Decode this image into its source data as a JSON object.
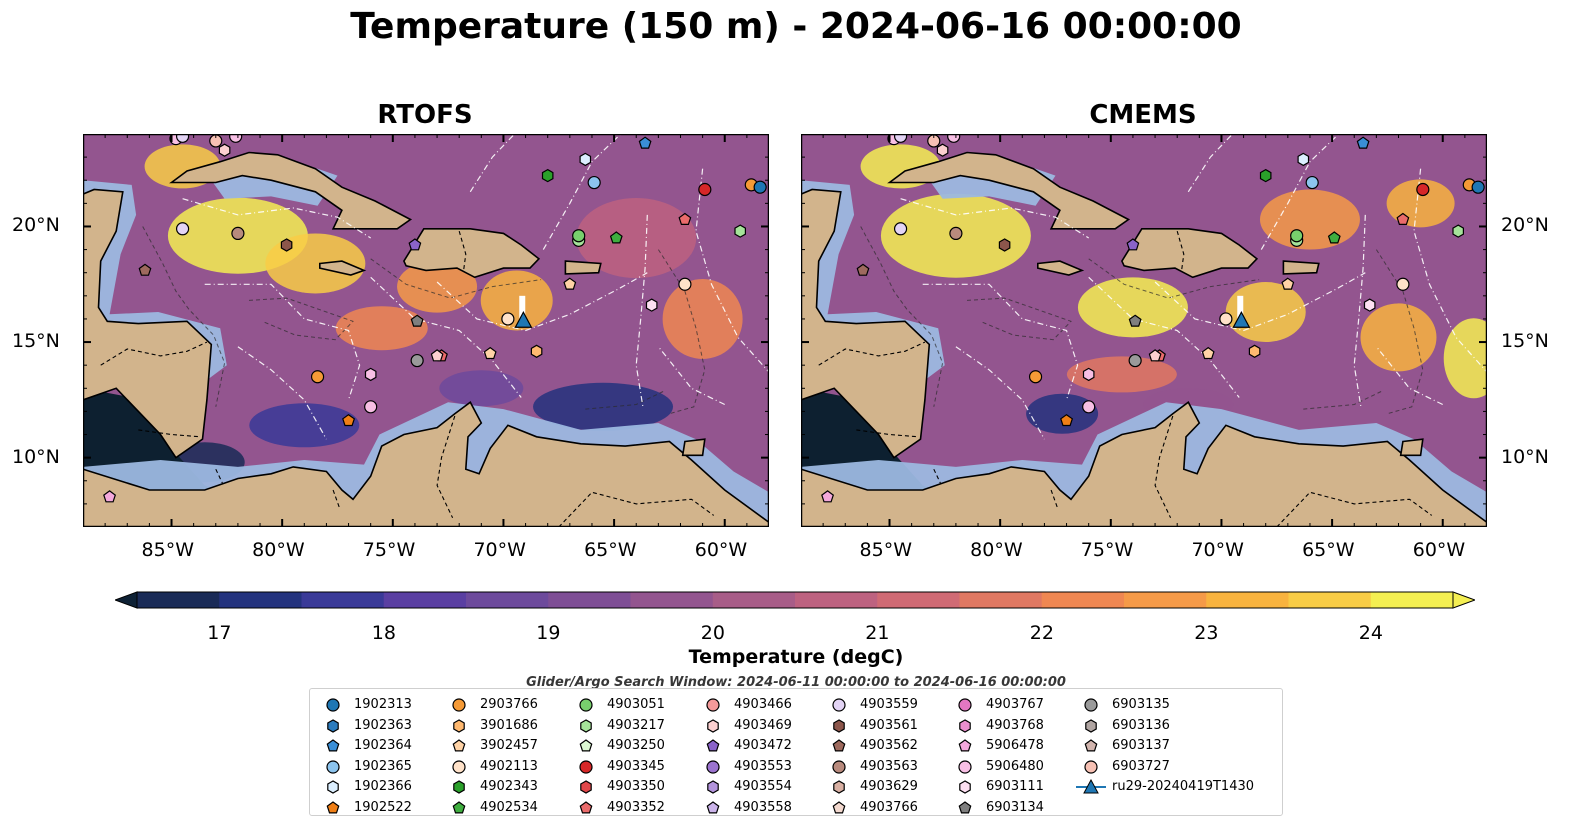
{
  "title": "Temperature (150 m) - 2024-06-16 00:00:00",
  "chart_data": {
    "type": "heatmap",
    "panels": [
      {
        "title": "RTOFS"
      },
      {
        "title": "CMEMS"
      }
    ],
    "x_ticks": [
      "85°W",
      "80°W",
      "75°W",
      "70°W",
      "65°W",
      "60°W"
    ],
    "y_ticks": [
      "20°N",
      "15°N",
      "10°N"
    ],
    "x_tick_values": [
      -85,
      -80,
      -75,
      -70,
      -65,
      -60
    ],
    "y_tick_values": [
      20,
      15,
      10
    ],
    "lon_range": [
      -89,
      -58
    ],
    "lat_range": [
      7,
      24
    ],
    "colorbar": {
      "label": "Temperature (degC)",
      "ticks": [
        "17",
        "18",
        "19",
        "20",
        "21",
        "22",
        "23",
        "24"
      ],
      "min": 16.5,
      "max": 24.5,
      "colors": [
        "#0e2135",
        "#1a2b57",
        "#24337e",
        "#3a3a98",
        "#5a3fa2",
        "#6d4a9c",
        "#7e4e95",
        "#93558f",
        "#a85d88",
        "#bd6280",
        "#d06a74",
        "#e07862",
        "#ef8752",
        "#f59a48",
        "#f8b33f",
        "#f8cc46",
        "#f4ef52"
      ]
    },
    "search_window": "Glider/Argo Search Window: 2024-06-11 00:00:00 to 2024-06-16 00:00:00",
    "legend": [
      {
        "label": "1902313",
        "marker": "circle",
        "color": "#1f77b4"
      },
      {
        "label": "1902363",
        "marker": "hexagon",
        "color": "#2b7bbd"
      },
      {
        "label": "1902364",
        "marker": "pentagon",
        "color": "#3a8ed6"
      },
      {
        "label": "1902365",
        "marker": "circle",
        "color": "#8cc4ee"
      },
      {
        "label": "1902366",
        "marker": "hexagon",
        "color": "#dcefff"
      },
      {
        "label": "1902522",
        "marker": "pentagon",
        "color": "#f07f16"
      },
      {
        "label": "2903766",
        "marker": "circle",
        "color": "#f59a36"
      },
      {
        "label": "3901686",
        "marker": "hexagon",
        "color": "#ffb970"
      },
      {
        "label": "3902457",
        "marker": "pentagon",
        "color": "#ffd3a6"
      },
      {
        "label": "4902113",
        "marker": "circle",
        "color": "#ffe2c9"
      },
      {
        "label": "4902343",
        "marker": "hexagon",
        "color": "#2aa02a"
      },
      {
        "label": "4902534",
        "marker": "pentagon",
        "color": "#3fae3f"
      },
      {
        "label": "4903051",
        "marker": "circle",
        "color": "#78cf6d"
      },
      {
        "label": "4903217",
        "marker": "hexagon",
        "color": "#a6e39a"
      },
      {
        "label": "4903250",
        "marker": "pentagon",
        "color": "#dcf8d2"
      },
      {
        "label": "4903345",
        "marker": "circle",
        "color": "#d62728"
      },
      {
        "label": "4903350",
        "marker": "hexagon",
        "color": "#e0474a"
      },
      {
        "label": "4903352",
        "marker": "pentagon",
        "color": "#ea6b6b"
      },
      {
        "label": "4903466",
        "marker": "circle",
        "color": "#f59a9a"
      },
      {
        "label": "4903469",
        "marker": "hexagon",
        "color": "#fcd0d0"
      },
      {
        "label": "4903472",
        "marker": "pentagon",
        "color": "#8a63c9"
      },
      {
        "label": "4903553",
        "marker": "circle",
        "color": "#9b73cf"
      },
      {
        "label": "4903554",
        "marker": "hexagon",
        "color": "#b394dc"
      },
      {
        "label": "4903558",
        "marker": "pentagon",
        "color": "#cbb4ea"
      },
      {
        "label": "4903559",
        "marker": "circle",
        "color": "#e3d4f5"
      },
      {
        "label": "4903561",
        "marker": "hexagon",
        "color": "#8c564b"
      },
      {
        "label": "4903562",
        "marker": "pentagon",
        "color": "#9e6a5e"
      },
      {
        "label": "4903563",
        "marker": "circle",
        "color": "#b88a7d"
      },
      {
        "label": "4903629",
        "marker": "hexagon",
        "color": "#d9b0a3"
      },
      {
        "label": "4903766",
        "marker": "pentagon",
        "color": "#f3d9cf"
      },
      {
        "label": "4903767",
        "marker": "circle",
        "color": "#e377c2"
      },
      {
        "label": "4903768",
        "marker": "hexagon",
        "color": "#eb8fcf"
      },
      {
        "label": "5906478",
        "marker": "pentagon",
        "color": "#f4a8dc"
      },
      {
        "label": "5906480",
        "marker": "circle",
        "color": "#f7bfe4"
      },
      {
        "label": "6903111",
        "marker": "hexagon",
        "color": "#fde0f2"
      },
      {
        "label": "6903134",
        "marker": "pentagon",
        "color": "#7f7f7f"
      },
      {
        "label": "6903135",
        "marker": "circle",
        "color": "#9a9a9a"
      },
      {
        "label": "6903136",
        "marker": "hexagon",
        "color": "#b0a5a2"
      },
      {
        "label": "6903137",
        "marker": "pentagon",
        "color": "#d2b5ae"
      },
      {
        "label": "6903727",
        "marker": "circle",
        "color": "#f7c1b4"
      },
      {
        "label": "ru29-20240419T1430",
        "marker": "triangle-line",
        "color": "#1f77b4"
      }
    ],
    "floats": [
      {
        "lon": -84.8,
        "lat": 23.8,
        "color": "#f7bfe4",
        "marker": "circle"
      },
      {
        "lon": -84.5,
        "lat": 23.9,
        "color": "#e3d4f5",
        "marker": "circle"
      },
      {
        "lon": -83.0,
        "lat": 23.7,
        "color": "#f7c1b4",
        "marker": "circle"
      },
      {
        "lon": -82.6,
        "lat": 23.3,
        "color": "#fcd0d0",
        "marker": "hexagon"
      },
      {
        "lon": -82.1,
        "lat": 23.9,
        "color": "#f7bfe4",
        "marker": "circle"
      },
      {
        "lon": -84.5,
        "lat": 19.9,
        "color": "#e3d4f5",
        "marker": "circle"
      },
      {
        "lon": -82.0,
        "lat": 19.7,
        "color": "#b88a7d",
        "marker": "circle"
      },
      {
        "lon": -79.8,
        "lat": 19.2,
        "color": "#8c564b",
        "marker": "hexagon"
      },
      {
        "lon": -86.2,
        "lat": 18.1,
        "color": "#9e6a5e",
        "marker": "pentagon"
      },
      {
        "lon": -74.0,
        "lat": 19.2,
        "color": "#8a63c9",
        "marker": "pentagon"
      },
      {
        "lon": -68.0,
        "lat": 22.2,
        "color": "#2aa02a",
        "marker": "hexagon"
      },
      {
        "lon": -66.3,
        "lat": 22.9,
        "color": "#dcefff",
        "marker": "hexagon"
      },
      {
        "lon": -65.9,
        "lat": 21.9,
        "color": "#8cc4ee",
        "marker": "circle"
      },
      {
        "lon": -63.6,
        "lat": 23.6,
        "color": "#3a8ed6",
        "marker": "pentagon"
      },
      {
        "lon": -60.9,
        "lat": 21.6,
        "color": "#d62728",
        "marker": "circle"
      },
      {
        "lon": -58.8,
        "lat": 21.8,
        "color": "#f59a36",
        "marker": "circle"
      },
      {
        "lon": -58.4,
        "lat": 21.7,
        "color": "#1f77b4",
        "marker": "circle"
      },
      {
        "lon": -61.8,
        "lat": 20.3,
        "color": "#ea6b6b",
        "marker": "pentagon"
      },
      {
        "lon": -59.3,
        "lat": 19.8,
        "color": "#a6e39a",
        "marker": "hexagon"
      },
      {
        "lon": -66.6,
        "lat": 19.4,
        "color": "#a6e39a",
        "marker": "circle"
      },
      {
        "lon": -66.6,
        "lat": 19.6,
        "color": "#78cf6d",
        "marker": "circle"
      },
      {
        "lon": -64.9,
        "lat": 19.5,
        "color": "#3fae3f",
        "marker": "pentagon"
      },
      {
        "lon": -67.0,
        "lat": 17.5,
        "color": "#ffd3a6",
        "marker": "pentagon"
      },
      {
        "lon": -61.8,
        "lat": 17.5,
        "color": "#ffe2c9",
        "marker": "circle"
      },
      {
        "lon": -63.3,
        "lat": 16.6,
        "color": "#fde0f2",
        "marker": "hexagon"
      },
      {
        "lon": -73.9,
        "lat": 15.9,
        "color": "#7f7f7f",
        "marker": "pentagon"
      },
      {
        "lon": -69.8,
        "lat": 16.0,
        "color": "#ffe2c9",
        "marker": "circle"
      },
      {
        "lon": -68.5,
        "lat": 14.6,
        "color": "#ffb970",
        "marker": "hexagon"
      },
      {
        "lon": -70.6,
        "lat": 14.5,
        "color": "#ffd3a6",
        "marker": "pentagon"
      },
      {
        "lon": -72.8,
        "lat": 14.4,
        "color": "#ea6b6b",
        "marker": "pentagon"
      },
      {
        "lon": -73.0,
        "lat": 14.4,
        "color": "#fcd0d0",
        "marker": "pentagon"
      },
      {
        "lon": -73.9,
        "lat": 14.2,
        "color": "#9a9a9a",
        "marker": "circle"
      },
      {
        "lon": -76.0,
        "lat": 13.6,
        "color": "#f7bfe4",
        "marker": "hexagon"
      },
      {
        "lon": -78.4,
        "lat": 13.5,
        "color": "#f59a36",
        "marker": "circle"
      },
      {
        "lon": -76.0,
        "lat": 12.2,
        "color": "#f7bfe4",
        "marker": "circle"
      },
      {
        "lon": -77.0,
        "lat": 11.6,
        "color": "#f07f16",
        "marker": "pentagon"
      },
      {
        "lon": -87.8,
        "lat": 8.3,
        "color": "#f4a8dc",
        "marker": "pentagon"
      }
    ],
    "glider": {
      "lon": -69.1,
      "lat": 15.9,
      "color": "#1f77b4"
    }
  }
}
